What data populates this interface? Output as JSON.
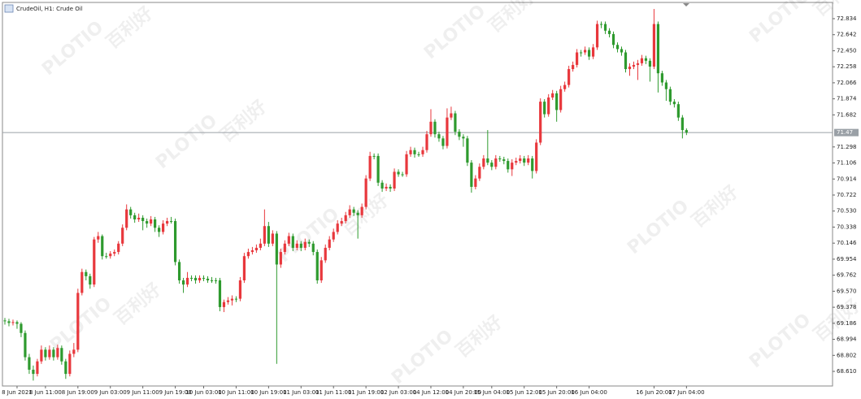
{
  "chart_data": {
    "type": "candlestick",
    "title": "CrudeOil, H1:  Crude Oil",
    "watermark": "PLOTIO",
    "watermark_cn": "百利好",
    "up_color": "#e8373c",
    "down_color": "#2e9a2e",
    "price_line_color": "#9aa0a6",
    "last_price": 71.47,
    "ylim": [
      68.435,
      73.009
    ],
    "xlim": [
      -0.6,
      204
    ],
    "yticks": [
      72.834,
      72.642,
      {
        "value": 72.45,
        "label": "72.450"
      },
      72.258,
      72.066,
      71.874,
      71.682,
      71.298,
      71.106,
      70.914,
      70.722,
      {
        "value": 70.53,
        "label": "70.530"
      },
      70.338,
      70.146,
      69.954,
      69.762,
      {
        "value": 69.57,
        "label": "69.570"
      },
      69.378,
      69.186,
      68.994,
      68.802,
      {
        "value": 68.61,
        "label": "68.610"
      }
    ],
    "xticks": [
      {
        "value": 3,
        "label": "8 Jun 2021"
      },
      {
        "value": 10,
        "label": "8 Jun 11:00"
      },
      {
        "value": 18,
        "label": "8 Jun 19:00"
      },
      {
        "value": 26,
        "label": "9 Jun 03:00"
      },
      {
        "value": 34,
        "label": "9 Jun 11:00"
      },
      {
        "value": 42,
        "label": "9 Jun 19:00"
      },
      {
        "value": 49,
        "label": "10 Jun 03:00"
      },
      {
        "value": 57,
        "label": "10 Jun 11:00"
      },
      {
        "value": 65,
        "label": "10 Jun 19:00"
      },
      {
        "value": 73,
        "label": "11 Jun 03:00"
      },
      {
        "value": 81,
        "label": "11 Jun 11:00"
      },
      {
        "value": 89,
        "label": "11 Jun 19:00"
      },
      {
        "value": 97,
        "label": "12 Jun 03:00"
      },
      {
        "value": 105,
        "label": "14 Jun 12:00"
      },
      {
        "value": 113,
        "label": "14 Jun 20:00"
      },
      {
        "value": 120,
        "label": "15 Jun 04:00"
      },
      {
        "value": 128,
        "label": "15 Jun 12:00"
      },
      {
        "value": 136,
        "label": "15 Jun 20:00"
      },
      {
        "value": 144,
        "label": "16 Jun 04:00"
      },
      {
        "value": 160,
        "label": "16 Jun 20:00"
      },
      {
        "value": 168,
        "label": "17 Jun 04:00"
      }
    ],
    "candles": [
      [
        69.22,
        69.25,
        69.17,
        69.21
      ],
      [
        69.21,
        69.24,
        69.15,
        69.19
      ],
      [
        69.19,
        69.23,
        69.16,
        69.2
      ],
      [
        69.2,
        69.22,
        69.12,
        69.18
      ],
      [
        69.18,
        69.2,
        69.02,
        69.07
      ],
      [
        69.07,
        69.1,
        68.74,
        68.78
      ],
      [
        68.78,
        68.82,
        68.58,
        68.63
      ],
      [
        68.63,
        68.68,
        68.5,
        68.58
      ],
      [
        68.58,
        68.76,
        68.55,
        68.73
      ],
      [
        68.73,
        68.92,
        68.7,
        68.87
      ],
      [
        68.87,
        68.9,
        68.74,
        68.78
      ],
      [
        68.78,
        68.92,
        68.75,
        68.87
      ],
      [
        68.87,
        68.9,
        68.74,
        68.78
      ],
      [
        68.78,
        68.93,
        68.75,
        68.89
      ],
      [
        68.89,
        68.92,
        68.69,
        68.73
      ],
      [
        68.73,
        68.76,
        68.52,
        68.58
      ],
      [
        68.58,
        68.86,
        68.55,
        68.82
      ],
      [
        68.82,
        68.95,
        68.78,
        68.87
      ],
      [
        68.87,
        69.6,
        68.84,
        69.55
      ],
      [
        69.55,
        69.84,
        69.52,
        69.8
      ],
      [
        69.8,
        69.83,
        69.7,
        69.75
      ],
      [
        69.75,
        69.78,
        69.6,
        69.65
      ],
      [
        69.65,
        70.22,
        69.62,
        70.19
      ],
      [
        70.19,
        70.28,
        70.15,
        70.23
      ],
      [
        70.23,
        70.25,
        69.95,
        69.99
      ],
      [
        69.99,
        70.03,
        69.96,
        69.99
      ],
      [
        69.99,
        70.05,
        69.96,
        70.02
      ],
      [
        70.02,
        70.07,
        69.99,
        70.04
      ],
      [
        70.04,
        70.17,
        70.01,
        70.14
      ],
      [
        70.14,
        70.37,
        70.11,
        70.33
      ],
      [
        70.33,
        70.61,
        70.3,
        70.55
      ],
      [
        70.55,
        70.58,
        70.44,
        70.48
      ],
      [
        70.48,
        70.51,
        70.39,
        70.43
      ],
      [
        70.43,
        70.5,
        70.4,
        70.45
      ],
      [
        70.45,
        70.48,
        70.3,
        70.41
      ],
      [
        70.41,
        70.44,
        70.33,
        70.38
      ],
      [
        70.38,
        70.47,
        70.35,
        70.43
      ],
      [
        70.43,
        70.46,
        70.28,
        70.33
      ],
      [
        70.33,
        70.36,
        70.22,
        70.28
      ],
      [
        70.28,
        70.42,
        70.25,
        70.38
      ],
      [
        70.38,
        70.45,
        70.35,
        70.41
      ],
      [
        70.41,
        70.46,
        70.38,
        70.41
      ],
      [
        70.41,
        70.44,
        69.88,
        69.92
      ],
      [
        69.92,
        69.95,
        69.66,
        69.7
      ],
      [
        69.7,
        69.73,
        69.55,
        69.65
      ],
      [
        69.65,
        69.8,
        69.62,
        69.73
      ],
      [
        69.73,
        69.76,
        69.69,
        69.73
      ],
      [
        69.73,
        69.76,
        69.66,
        69.7
      ],
      [
        69.7,
        69.76,
        69.67,
        69.73
      ],
      [
        69.73,
        69.76,
        69.69,
        69.72
      ],
      [
        69.72,
        69.75,
        69.67,
        69.7
      ],
      [
        69.7,
        69.74,
        69.67,
        69.7
      ],
      [
        69.7,
        69.73,
        69.66,
        69.7
      ],
      [
        69.7,
        69.73,
        69.33,
        69.38
      ],
      [
        69.38,
        69.47,
        69.32,
        69.44
      ],
      [
        69.44,
        69.5,
        69.41,
        69.46
      ],
      [
        69.46,
        69.52,
        69.4,
        69.48
      ],
      [
        69.48,
        69.51,
        69.44,
        69.48
      ],
      [
        69.48,
        69.74,
        69.45,
        69.7
      ],
      [
        69.7,
        70.03,
        69.67,
        69.99
      ],
      [
        69.99,
        70.08,
        69.96,
        70.04
      ],
      [
        70.04,
        70.1,
        70.01,
        70.06
      ],
      [
        70.06,
        70.13,
        70.03,
        70.09
      ],
      [
        70.09,
        70.2,
        70.06,
        70.14
      ],
      [
        70.14,
        70.55,
        70.11,
        70.35
      ],
      [
        70.35,
        70.4,
        70.1,
        70.14
      ],
      [
        70.14,
        70.3,
        70.11,
        70.26
      ],
      [
        70.26,
        70.29,
        68.7,
        69.89
      ],
      [
        69.89,
        70.08,
        69.85,
        70.04
      ],
      [
        70.04,
        70.18,
        70.01,
        70.14
      ],
      [
        70.14,
        70.27,
        70.11,
        70.23
      ],
      [
        70.23,
        70.26,
        70.05,
        70.09
      ],
      [
        70.09,
        70.18,
        70.06,
        70.14
      ],
      [
        70.14,
        70.17,
        70.05,
        70.09
      ],
      [
        70.09,
        70.2,
        70.06,
        70.16
      ],
      [
        70.16,
        70.19,
        70.1,
        70.14
      ],
      [
        70.14,
        70.17,
        70.0,
        70.04
      ],
      [
        70.04,
        70.07,
        69.66,
        69.7
      ],
      [
        69.7,
        69.98,
        69.67,
        69.94
      ],
      [
        69.94,
        70.13,
        69.91,
        70.09
      ],
      [
        70.09,
        70.23,
        70.06,
        70.19
      ],
      [
        70.19,
        70.32,
        70.16,
        70.28
      ],
      [
        70.28,
        70.42,
        70.25,
        70.38
      ],
      [
        70.38,
        70.45,
        70.35,
        70.41
      ],
      [
        70.41,
        70.52,
        70.38,
        70.48
      ],
      [
        70.48,
        70.6,
        70.45,
        70.55
      ],
      [
        70.55,
        70.58,
        70.47,
        70.51
      ],
      [
        70.51,
        70.54,
        70.2,
        70.48
      ],
      [
        70.48,
        70.62,
        70.45,
        70.58
      ],
      [
        70.58,
        70.96,
        70.55,
        70.92
      ],
      [
        70.92,
        71.24,
        70.89,
        71.19
      ],
      [
        71.19,
        71.22,
        71.15,
        71.19
      ],
      [
        71.19,
        71.22,
        70.83,
        70.87
      ],
      [
        70.87,
        70.9,
        70.76,
        70.8
      ],
      [
        70.8,
        70.86,
        70.77,
        70.82
      ],
      [
        70.82,
        70.85,
        70.76,
        70.8
      ],
      [
        70.8,
        71.04,
        70.77,
        71.0
      ],
      [
        71.0,
        71.03,
        70.94,
        70.97
      ],
      [
        70.97,
        71.0,
        70.94,
        70.97
      ],
      [
        70.97,
        71.25,
        70.94,
        71.21
      ],
      [
        71.21,
        71.3,
        71.18,
        71.26
      ],
      [
        71.26,
        71.29,
        71.17,
        71.21
      ],
      [
        71.21,
        71.24,
        71.18,
        71.21
      ],
      [
        71.21,
        71.3,
        71.18,
        71.26
      ],
      [
        71.26,
        71.49,
        71.23,
        71.45
      ],
      [
        71.45,
        71.75,
        71.42,
        71.6
      ],
      [
        71.6,
        71.63,
        71.41,
        71.45
      ],
      [
        71.45,
        71.48,
        71.36,
        71.4
      ],
      [
        71.4,
        71.43,
        71.27,
        71.31
      ],
      [
        71.31,
        71.76,
        71.28,
        71.65
      ],
      [
        71.65,
        71.78,
        71.62,
        71.7
      ],
      [
        71.7,
        71.73,
        71.44,
        71.48
      ],
      [
        71.48,
        71.51,
        71.38,
        71.42
      ],
      [
        71.42,
        71.45,
        71.3,
        71.4
      ],
      [
        71.4,
        71.43,
        71.07,
        71.11
      ],
      [
        71.11,
        71.14,
        70.75,
        70.82
      ],
      [
        70.82,
        70.96,
        70.79,
        70.92
      ],
      [
        70.92,
        71.1,
        70.89,
        71.06
      ],
      [
        71.06,
        71.2,
        71.03,
        71.16
      ],
      [
        71.16,
        71.5,
        71.08,
        71.11
      ],
      [
        71.11,
        71.14,
        71.02,
        71.06
      ],
      [
        71.06,
        71.2,
        71.03,
        71.16
      ],
      [
        71.16,
        71.19,
        71.12,
        71.15
      ],
      [
        71.15,
        71.18,
        71.09,
        71.13
      ],
      [
        71.13,
        71.16,
        70.99,
        71.03
      ],
      [
        71.03,
        71.15,
        70.95,
        71.11
      ],
      [
        71.11,
        71.17,
        71.08,
        71.13
      ],
      [
        71.13,
        71.2,
        71.1,
        71.16
      ],
      [
        71.16,
        71.19,
        71.07,
        71.11
      ],
      [
        71.11,
        71.2,
        71.08,
        71.16
      ],
      [
        71.16,
        71.19,
        70.92,
        71.01
      ],
      [
        71.01,
        71.39,
        70.98,
        71.35
      ],
      [
        71.35,
        71.88,
        71.32,
        71.84
      ],
      [
        71.84,
        71.87,
        71.65,
        71.69
      ],
      [
        71.69,
        71.93,
        71.66,
        71.89
      ],
      [
        71.89,
        71.98,
        71.86,
        71.94
      ],
      [
        71.94,
        71.97,
        71.6,
        71.74
      ],
      [
        71.74,
        72.03,
        71.71,
        71.99
      ],
      [
        71.99,
        72.08,
        71.96,
        72.04
      ],
      [
        72.04,
        72.27,
        72.01,
        72.23
      ],
      [
        72.23,
        72.32,
        72.2,
        72.28
      ],
      [
        72.28,
        72.47,
        72.25,
        72.43
      ],
      [
        72.43,
        72.46,
        72.38,
        72.43
      ],
      [
        72.43,
        72.5,
        72.4,
        72.46
      ],
      [
        72.46,
        72.49,
        72.34,
        72.38
      ],
      [
        72.38,
        72.53,
        72.35,
        72.49
      ],
      [
        72.49,
        72.81,
        72.46,
        72.77
      ],
      [
        72.77,
        72.8,
        72.72,
        72.77
      ],
      [
        72.77,
        72.8,
        72.65,
        72.69
      ],
      [
        72.69,
        72.72,
        72.61,
        72.65
      ],
      [
        72.65,
        72.68,
        72.48,
        72.52
      ],
      [
        72.52,
        72.55,
        72.43,
        72.47
      ],
      [
        72.47,
        72.5,
        72.39,
        72.43
      ],
      [
        72.43,
        72.46,
        72.19,
        72.23
      ],
      [
        72.23,
        72.3,
        72.15,
        72.26
      ],
      [
        72.26,
        72.32,
        72.23,
        72.28
      ],
      [
        72.28,
        72.34,
        72.1,
        72.3
      ],
      [
        72.3,
        72.4,
        72.27,
        72.36
      ],
      [
        72.36,
        72.39,
        72.29,
        72.33
      ],
      [
        72.33,
        72.36,
        72.08,
        72.26
      ],
      [
        72.26,
        72.95,
        72.23,
        72.77
      ],
      [
        72.77,
        72.8,
        71.95,
        72.18
      ],
      [
        72.18,
        72.21,
        72.03,
        72.07
      ],
      [
        72.07,
        72.1,
        71.85,
        71.99
      ],
      [
        71.99,
        72.02,
        71.8,
        71.84
      ],
      [
        71.84,
        71.87,
        71.77,
        71.81
      ],
      [
        71.81,
        71.84,
        71.61,
        71.65
      ],
      [
        71.65,
        71.68,
        71.4,
        71.5
      ],
      [
        71.5,
        71.52,
        71.44,
        71.47
      ]
    ]
  }
}
